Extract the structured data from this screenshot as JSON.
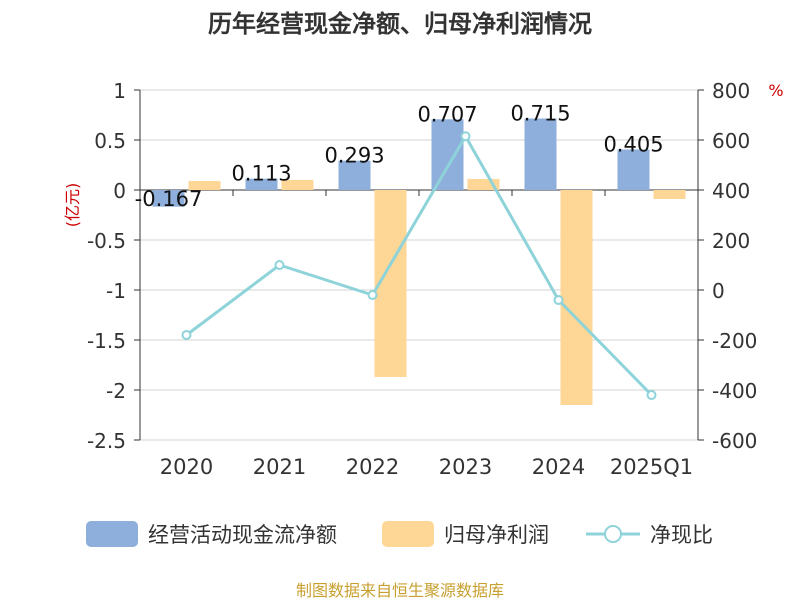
{
  "chart_data": {
    "type": "bar+line",
    "title": "历年经营现金净额、归母净利润情况",
    "categories": [
      "2020",
      "2021",
      "2022",
      "2023",
      "2024",
      "2025Q1"
    ],
    "y_left": {
      "label": "(亿元)",
      "ticks": [
        "1",
        "0.5",
        "0",
        "-0.5",
        "-1",
        "-1.5",
        "-2",
        "-2.5"
      ],
      "ylim": [
        -2.5,
        1
      ]
    },
    "y_right": {
      "label": "%",
      "ticks": [
        "800",
        "600",
        "400",
        "200",
        "0",
        "-200",
        "-400",
        "-600"
      ],
      "ylim": [
        -600,
        800
      ]
    },
    "series": [
      {
        "name": "经营活动现金流净额",
        "type": "bar",
        "axis": "left",
        "color": "#8eaedb",
        "values": [
          -0.167,
          0.113,
          0.293,
          0.707,
          0.715,
          0.405
        ],
        "labels": [
          "-0.167",
          "0.113",
          "0.293",
          "0.707",
          "0.715",
          "0.405"
        ]
      },
      {
        "name": "归母净利润",
        "type": "bar",
        "axis": "left",
        "color": "#fed695",
        "values": [
          0.09,
          0.1,
          -1.87,
          0.11,
          -2.15,
          -0.09
        ]
      },
      {
        "name": "净现比",
        "type": "line",
        "axis": "right",
        "color": "#8dd3d9",
        "values": [
          -180,
          100,
          -20,
          615,
          -40,
          -420
        ]
      }
    ],
    "legend_position": "bottom",
    "grid": true
  },
  "source": "制图数据来自恒生聚源数据库"
}
